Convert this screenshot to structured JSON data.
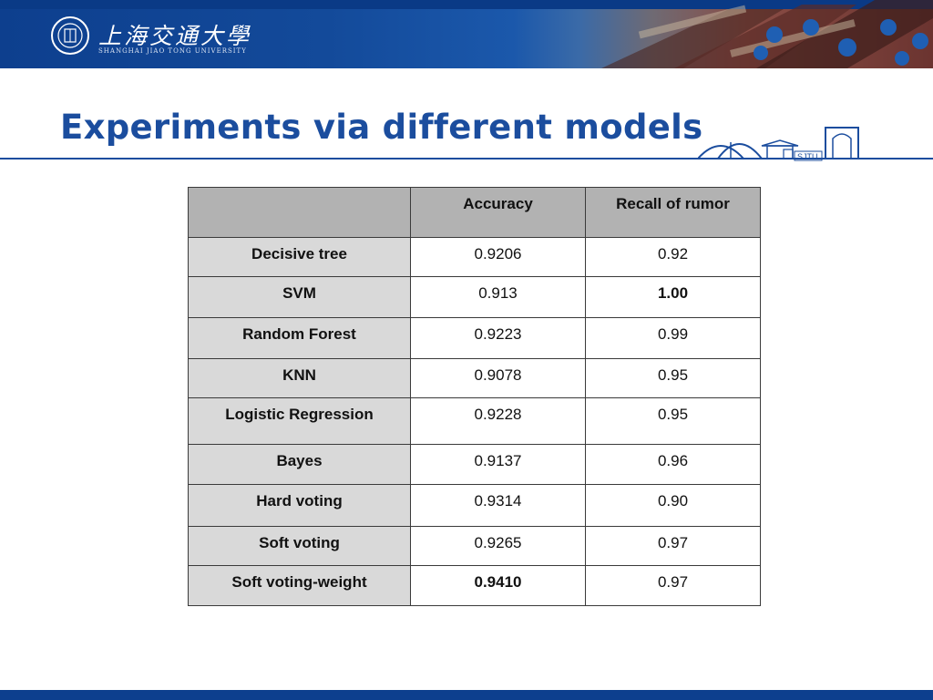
{
  "header": {
    "university_cn": "上海交通大學",
    "university_en": "SHANGHAI JIAO TONG UNIVERSITY",
    "mark_text": "SJTU",
    "colors": {
      "primary_blue": "#1b4d9e",
      "banner_blue": "#0d3f8e"
    }
  },
  "slide": {
    "title": "Experiments via different models"
  },
  "table": {
    "columns": [
      "",
      "Accuracy",
      "Recall of rumor"
    ],
    "rows": [
      {
        "model": "Decisive tree",
        "accuracy": "0.9206",
        "recall": "0.92"
      },
      {
        "model": "SVM",
        "accuracy": "0.913",
        "recall": "1.00"
      },
      {
        "model": "Random Forest",
        "accuracy": "0.9223",
        "recall": "0.99"
      },
      {
        "model": "KNN",
        "accuracy": "0.9078",
        "recall": "0.95"
      },
      {
        "model": "Logistic Regression",
        "accuracy": "0.9228",
        "recall": "0.95"
      },
      {
        "model": "Bayes",
        "accuracy": "0.9137",
        "recall": "0.96"
      },
      {
        "model": "Hard voting",
        "accuracy": "0.9314",
        "recall": "0.90"
      },
      {
        "model": "Soft voting",
        "accuracy": "0.9265",
        "recall": "0.97"
      },
      {
        "model": "Soft voting-weight",
        "accuracy": "0.9410",
        "recall": "0.97"
      }
    ]
  }
}
